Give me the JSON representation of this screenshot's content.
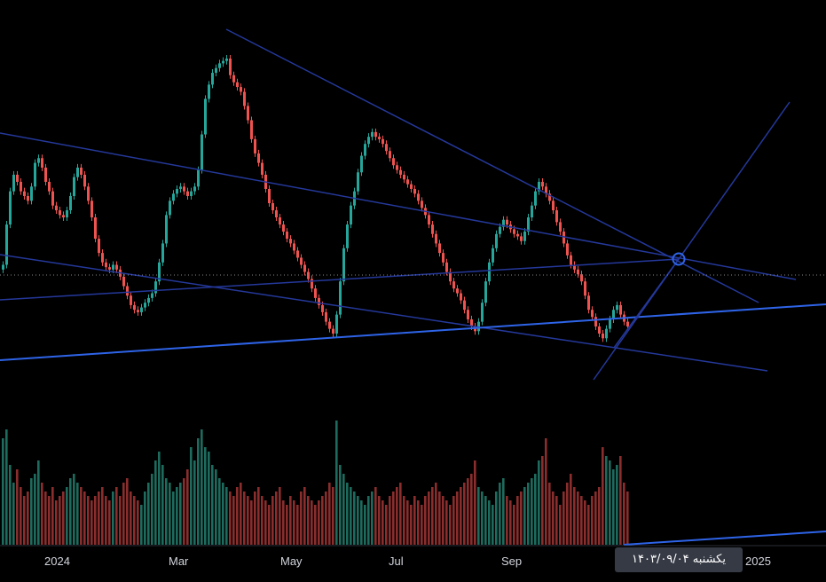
{
  "colors": {
    "background": "#000000",
    "up": "#26a69a",
    "down": "#ef5350",
    "volume_up": "#1e6b5e",
    "volume_down": "#8a2d2d",
    "trendline": "#2a3f8f",
    "trendline_bright": "#2962ff",
    "axis_text": "#d1d4dc",
    "crosshair_label_bg": "#363a45"
  },
  "time_axis": {
    "labels": [
      "2024",
      "Mar",
      "May",
      "Jul",
      "Sep",
      "2025"
    ]
  },
  "crosshair": {
    "date_label": "یکشنبه ۱۴۰۳/۰۹/۰۴"
  },
  "chart_data": {
    "type": "candlestick",
    "title": "",
    "xlabel": "",
    "ylabel": "",
    "x_ticks": [
      "2024",
      "Mar",
      "May",
      "Jul",
      "Sep",
      "2025"
    ],
    "grid": false,
    "legend": "none",
    "series": [
      {
        "kind": "price",
        "close": [
          245,
          262,
          276,
          283,
          280,
          276,
          274,
          272,
          278,
          288,
          290,
          286,
          280,
          276,
          270,
          268,
          266,
          265,
          268,
          274,
          282,
          286,
          283,
          278,
          272,
          265,
          256,
          250,
          246,
          244,
          243,
          245,
          243,
          240,
          236,
          232,
          228,
          226,
          225,
          227,
          229,
          231,
          233,
          238,
          246,
          254,
          266,
          272,
          275,
          277,
          278,
          276,
          274,
          276,
          278,
          285,
          300,
          315,
          321,
          326,
          328,
          330,
          331,
          332,
          325,
          322,
          320,
          318,
          312,
          306,
          298,
          292,
          288,
          283,
          277,
          271,
          268,
          265,
          262,
          259,
          256,
          254,
          251,
          248,
          245,
          242,
          239,
          235,
          231,
          228,
          225,
          221,
          218,
          216,
          224,
          238,
          252,
          262,
          270,
          276,
          284,
          291,
          296,
          299,
          301,
          299,
          298,
          296,
          293,
          290,
          287,
          285,
          283,
          281,
          279,
          277,
          275,
          272,
          269,
          266,
          262,
          258,
          254,
          250,
          246,
          242,
          238,
          235,
          233,
          230,
          226,
          222,
          219,
          217,
          221,
          229,
          238,
          246,
          252,
          258,
          261,
          264,
          262,
          260,
          258,
          257,
          255,
          259,
          265,
          270,
          276,
          280,
          278,
          275,
          272,
          268,
          263,
          259,
          254,
          249,
          245,
          243,
          241,
          238,
          232,
          226,
          223,
          219,
          216,
          214,
          218,
          222,
          226,
          228,
          224,
          221,
          219
        ]
      },
      {
        "kind": "volume",
        "values": [
          120,
          130,
          90,
          70,
          85,
          65,
          55,
          60,
          75,
          80,
          95,
          70,
          60,
          55,
          65,
          50,
          55,
          60,
          65,
          75,
          80,
          70,
          65,
          60,
          55,
          50,
          55,
          60,
          65,
          55,
          50,
          60,
          65,
          55,
          70,
          75,
          60,
          55,
          50,
          45,
          60,
          70,
          80,
          95,
          105,
          90,
          75,
          70,
          60,
          65,
          70,
          75,
          85,
          110,
          95,
          120,
          130,
          110,
          105,
          90,
          85,
          75,
          70,
          65,
          60,
          55,
          65,
          70,
          60,
          55,
          50,
          60,
          65,
          55,
          50,
          45,
          55,
          60,
          65,
          50,
          45,
          55,
          50,
          45,
          60,
          65,
          55,
          50,
          45,
          50,
          55,
          60,
          70,
          65,
          140,
          90,
          80,
          70,
          65,
          60,
          55,
          50,
          45,
          55,
          60,
          65,
          55,
          50,
          45,
          55,
          60,
          65,
          70,
          55,
          50,
          45,
          55,
          50,
          45,
          55,
          60,
          65,
          70,
          60,
          55,
          50,
          45,
          55,
          60,
          65,
          70,
          75,
          80,
          95,
          65,
          60,
          55,
          50,
          45,
          60,
          70,
          75,
          55,
          50,
          45,
          55,
          60,
          65,
          70,
          75,
          80,
          95,
          100,
          120,
          70,
          60,
          55,
          45,
          60,
          70,
          80,
          65,
          60,
          55,
          50,
          45,
          55,
          60,
          65,
          110,
          100,
          95,
          85,
          90,
          100,
          70,
          60
        ]
      }
    ],
    "trendlines": 9
  }
}
